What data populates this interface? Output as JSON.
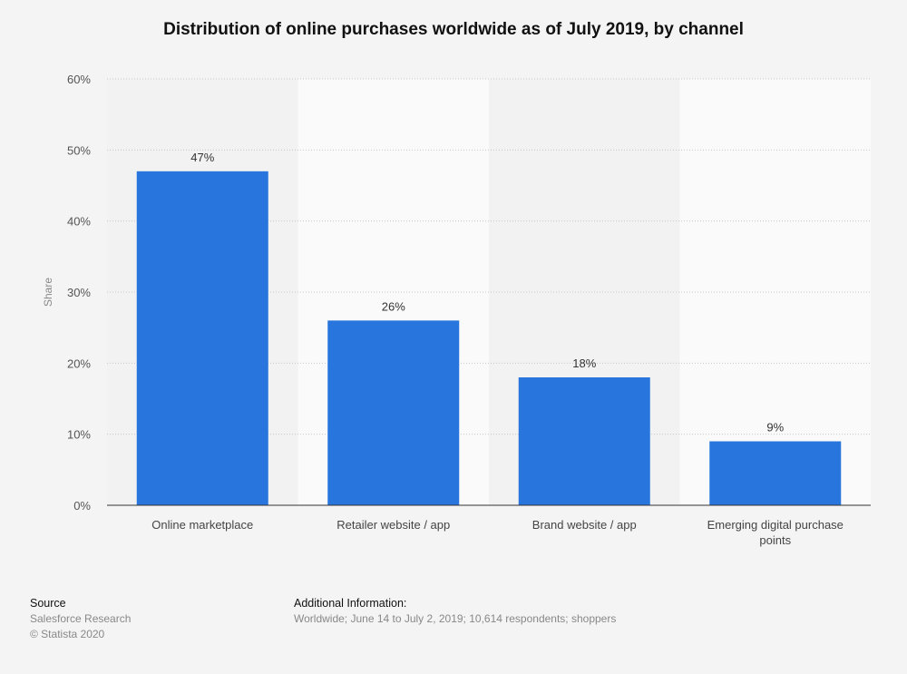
{
  "title": "Distribution of online purchases worldwide as of July 2019, by channel",
  "chart_data": {
    "type": "bar",
    "title": "Distribution of online purchases worldwide as of July 2019, by channel",
    "categories": [
      "Online marketplace",
      "Retailer website / app",
      "Brand website / app",
      "Emerging digital purchase points"
    ],
    "values": [
      47,
      26,
      18,
      9
    ],
    "data_labels": [
      "47%",
      "26%",
      "18%",
      "9%"
    ],
    "xlabel": "",
    "ylabel": "Share",
    "ylim": [
      0,
      60
    ],
    "yticks": [
      "0%",
      "10%",
      "20%",
      "30%",
      "40%",
      "50%",
      "60%"
    ],
    "grid": true,
    "bar_color": "#2876dd"
  },
  "footer": {
    "source_label": "Source",
    "source": "Salesforce Research",
    "copyright": "© Statista 2020",
    "info_label": "Additional Information:",
    "info": "Worldwide; June 14 to July 2, 2019; 10,614 respondents; shoppers"
  }
}
